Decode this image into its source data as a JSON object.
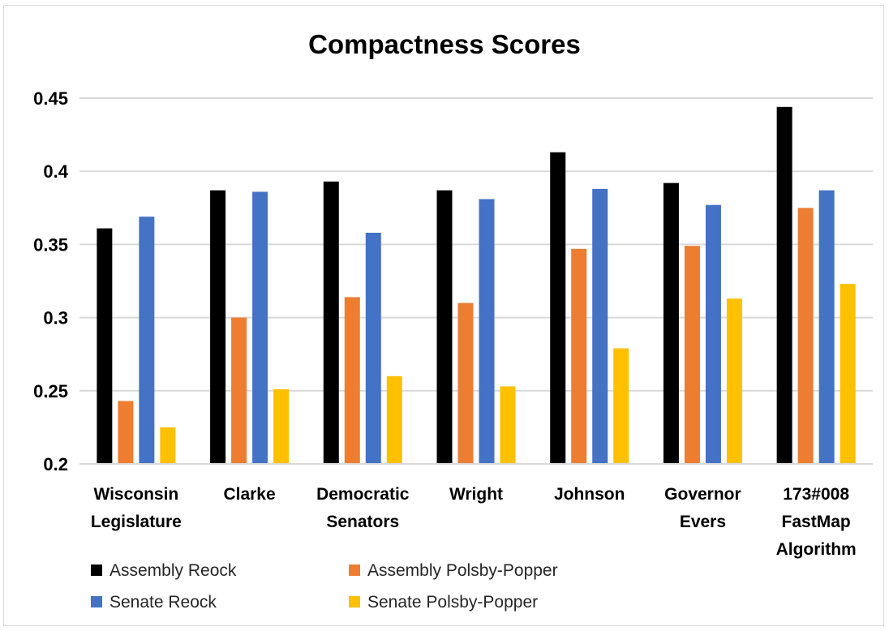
{
  "chart_data": {
    "type": "bar",
    "title": "Compactness Scores",
    "xlabel": "",
    "ylabel": "",
    "ylim": [
      0.2,
      0.45
    ],
    "yticks": [
      "0.45",
      "0.4",
      "0.35",
      "0.3",
      "0.25",
      "0.2"
    ],
    "ytick_values": [
      0.45,
      0.4,
      0.35,
      0.3,
      0.25,
      0.2
    ],
    "grid": true,
    "legend_position": "bottom",
    "categories": [
      [
        "Wisconsin",
        "Legislature"
      ],
      [
        "Clarke"
      ],
      [
        "Democratic",
        "Senators"
      ],
      [
        "Wright"
      ],
      [
        "Johnson"
      ],
      [
        "Governor",
        "Evers"
      ],
      [
        "173#008",
        "FastMap",
        "Algorithm"
      ]
    ],
    "series": [
      {
        "name": "Assembly Reock",
        "color": "#000000",
        "values": [
          0.361,
          0.387,
          0.393,
          0.387,
          0.413,
          0.392,
          0.444
        ]
      },
      {
        "name": "Assembly Polsby-Popper",
        "color": "#ed7d31",
        "values": [
          0.243,
          0.3,
          0.314,
          0.31,
          0.347,
          0.349,
          0.375
        ]
      },
      {
        "name": "Senate Reock",
        "color": "#4472c4",
        "values": [
          0.369,
          0.386,
          0.358,
          0.381,
          0.388,
          0.377,
          0.387
        ]
      },
      {
        "name": "Senate Polsby-Popper",
        "color": "#ffc000",
        "values": [
          0.225,
          0.251,
          0.26,
          0.253,
          0.279,
          0.313,
          0.323
        ]
      }
    ]
  }
}
